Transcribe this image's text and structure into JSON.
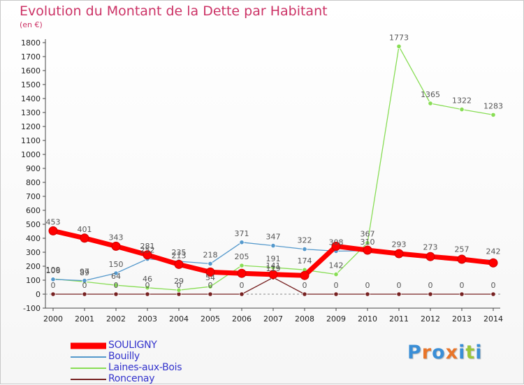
{
  "header": {
    "title": "Evolution du Montant de la Dette par Habitant",
    "subtitle": "(en €)"
  },
  "colors": {
    "title": "#cc3366",
    "legend_text": "#3333cc",
    "axis": "#444444"
  },
  "logo": {
    "text": "Proxiti",
    "letters": [
      {
        "ch": "P",
        "color": "#3a8ed6"
      },
      {
        "ch": "r",
        "color": "#e8752a"
      },
      {
        "ch": "o",
        "color": "#3a8ed6"
      },
      {
        "ch": "x",
        "color": "#e8752a"
      },
      {
        "ch": "i",
        "color": "#3a8ed6"
      },
      {
        "ch": "t",
        "color": "#9ac63a"
      },
      {
        "ch": "i",
        "color": "#3a8ed6"
      }
    ]
  },
  "chart_data": {
    "type": "line",
    "title": "Evolution du Montant de la Dette par Habitant",
    "subtitle": "(en €)",
    "x": [
      "2000",
      "2001",
      "2002",
      "2003",
      "2004",
      "2005",
      "2006",
      "2007",
      "2008",
      "2009",
      "2010",
      "2011",
      "2012",
      "2013",
      "2014"
    ],
    "ylim": [
      -100,
      1800
    ],
    "yticks": [
      -100,
      0,
      100,
      200,
      300,
      400,
      500,
      600,
      700,
      800,
      900,
      1000,
      1100,
      1200,
      1300,
      1400,
      1500,
      1600,
      1700,
      1800
    ],
    "grid": false,
    "legend_placement": "bottom-left",
    "series": [
      {
        "name": "SOULIGNY",
        "color": "#ff0000",
        "values": [
          453,
          401,
          343,
          281,
          213,
          158,
          149,
          141,
          134,
          343,
          315,
          290,
          269,
          250,
          224
        ],
        "labels": [
          "453",
          "401",
          "343",
          "281",
          "213",
          "",
          "",
          "141",
          "",
          "",
          "",
          "",
          "",
          "",
          ""
        ]
      },
      {
        "name": "Bouilly",
        "color": "#5599cc",
        "values": [
          106,
          97,
          150,
          252,
          235,
          218,
          371,
          347,
          322,
          308,
          310,
          293,
          273,
          257,
          242
        ],
        "labels": [
          "106",
          "97",
          "150",
          "252",
          "235",
          "218",
          "371",
          "347",
          "322",
          "308",
          "310",
          "293",
          "273",
          "257",
          "242"
        ]
      },
      {
        "name": "Laines-aux-Bois",
        "color": "#88dd55",
        "values": [
          109,
          89,
          64,
          46,
          29,
          54,
          205,
          191,
          174,
          142,
          367,
          1773,
          1365,
          1322,
          1283
        ],
        "labels": [
          "109",
          "89",
          "64",
          "46",
          "29",
          "54",
          "205",
          "191",
          "174",
          "142",
          "367",
          "1773",
          "1365",
          "1322",
          "1283"
        ]
      },
      {
        "name": "Roncenay",
        "color": "#772222",
        "values": [
          0,
          0,
          0,
          0,
          0,
          0,
          0,
          119,
          0,
          0,
          0,
          0,
          0,
          0,
          0
        ],
        "labels": [
          "0",
          "0",
          "0",
          "0",
          "0",
          "0",
          "0",
          "119",
          "0",
          "0",
          "0",
          "0",
          "0",
          "0",
          "0"
        ]
      }
    ]
  }
}
